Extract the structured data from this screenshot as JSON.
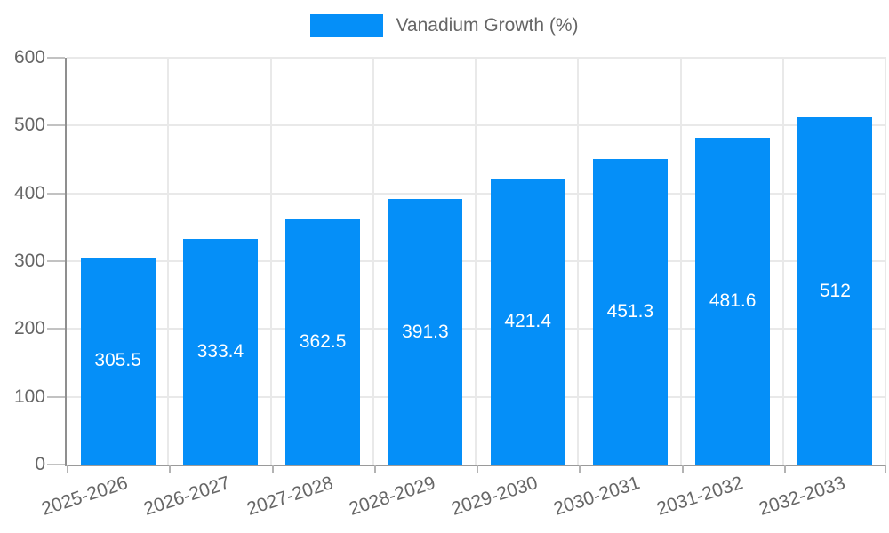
{
  "chart_data": {
    "type": "bar",
    "title": "",
    "legend_position": "top",
    "grid": true,
    "categories": [
      "2025-2026",
      "2026-2027",
      "2027-2028",
      "2028-2029",
      "2029-2030",
      "2030-2031",
      "2031-2032",
      "2032-2033"
    ],
    "series": [
      {
        "name": "Vanadium Growth (%)",
        "values": [
          305.5,
          333.4,
          362.5,
          391.3,
          421.4,
          451.3,
          481.6,
          512
        ]
      }
    ],
    "value_labels": [
      "305.5",
      "333.4",
      "362.5",
      "391.3",
      "421.4",
      "451.3",
      "481.6",
      "512"
    ],
    "xlabel": "",
    "ylabel": "",
    "ylim": [
      0,
      600
    ],
    "ytick_step": 100,
    "ytick_labels": [
      "0",
      "100",
      "200",
      "300",
      "400",
      "500",
      "600"
    ],
    "colors": {
      "bar": "#058FF8",
      "axis_text": "#666666",
      "grid_line": "#e9e9e9",
      "tick_mark": "#c2c2c2",
      "x_tick_mark": "#b3b3b3",
      "value_label": "#ffffff"
    }
  }
}
